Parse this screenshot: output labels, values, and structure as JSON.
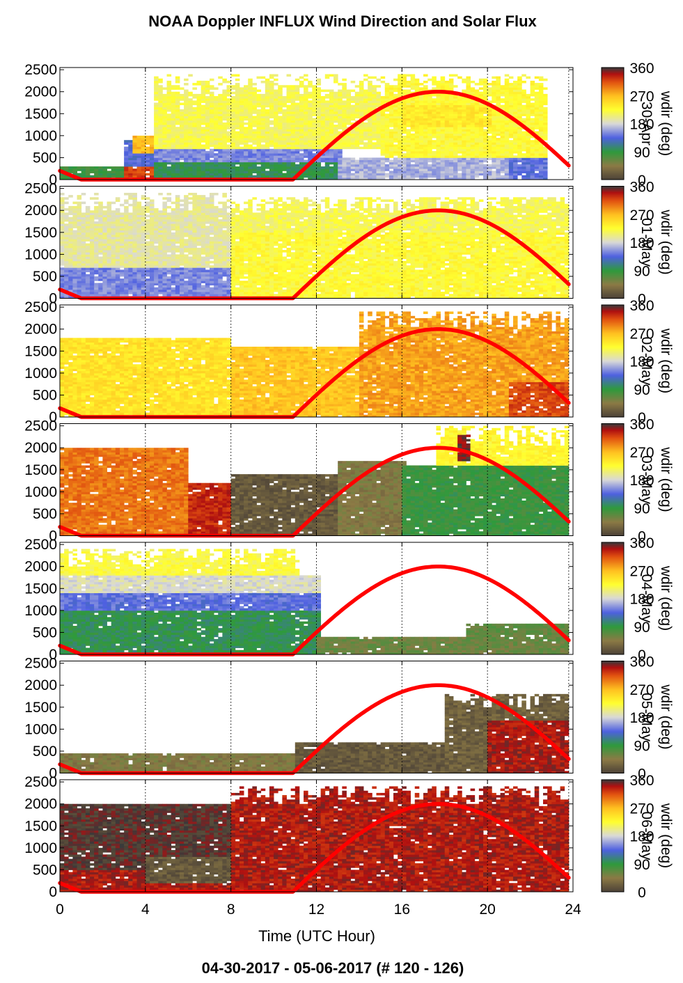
{
  "title": "NOAA Doppler INFLUX Wind Direction and Solar Flux",
  "footer": "04-30-2017 - 05-06-2017   (# 120 - 126)",
  "chart_data": {
    "type": "heatmap",
    "xlabel": "Time (UTC Hour)",
    "xlim": [
      0,
      24
    ],
    "x_ticks": [
      "0",
      "4",
      "8",
      "12",
      "16",
      "20",
      "24"
    ],
    "ylim": [
      0,
      2550
    ],
    "y_ticks": [
      "0",
      "500",
      "1000",
      "1500",
      "2000",
      "2500"
    ],
    "colorbar_label": "wdir (deg)",
    "colorbar_ticks": [
      "0",
      "90",
      "180",
      "270",
      "360"
    ],
    "colorbar_range": [
      0,
      360
    ],
    "colorbar_stops": [
      {
        "v": 0,
        "c": "#4a4037"
      },
      {
        "v": 45,
        "c": "#8c7a45"
      },
      {
        "v": 90,
        "c": "#2e9a3c"
      },
      {
        "v": 135,
        "c": "#4e60e0"
      },
      {
        "v": 180,
        "c": "#d8d8d8"
      },
      {
        "v": 225,
        "c": "#ffff30"
      },
      {
        "v": 270,
        "c": "#ffc020"
      },
      {
        "v": 315,
        "c": "#e05010"
      },
      {
        "v": 340,
        "c": "#b01010"
      },
      {
        "v": 360,
        "c": "#3a3a3a"
      }
    ],
    "solar_flux_color": "#ff0000",
    "solar_flux": {
      "rise_hour": 10.9,
      "peak_hour": 17.7,
      "peak_value": 2000,
      "start_hour": 0,
      "start_value": 200,
      "end_hour": 23.8,
      "end_value": 350
    },
    "panels": [
      {
        "day_label": "30-Apr",
        "coverage_end": 22.8,
        "top_height": 2350,
        "fields": [
          {
            "t0": 0,
            "t1": 3,
            "h0": 0,
            "h1": 300,
            "dir": 85
          },
          {
            "t0": 3,
            "t1": 4.3,
            "h0": 0,
            "h1": 300,
            "dir": 320
          },
          {
            "t0": 3,
            "t1": 4.3,
            "h0": 300,
            "h1": 900,
            "dir": 135
          },
          {
            "t0": 3.4,
            "t1": 4.3,
            "h0": 600,
            "h1": 1000,
            "dir": 270
          },
          {
            "t0": 4.3,
            "t1": 13,
            "h0": 0,
            "h1": 400,
            "dir": 95
          },
          {
            "t0": 4.3,
            "t1": 13,
            "h0": 400,
            "h1": 700,
            "dir": 150
          },
          {
            "t0": 4.3,
            "t1": 15,
            "h0": 700,
            "h1": 2400,
            "dir": 215
          },
          {
            "t0": 13,
            "t1": 22.8,
            "h0": 0,
            "h1": 500,
            "dir": 165
          },
          {
            "t0": 15,
            "t1": 22.8,
            "h0": 500,
            "h1": 2400,
            "dir": 225
          },
          {
            "t0": 16,
            "t1": 20,
            "h0": 1200,
            "h1": 1700,
            "dir": 240
          },
          {
            "t0": 21,
            "t1": 22.8,
            "h0": 0,
            "h1": 500,
            "dir": 140
          }
        ]
      },
      {
        "day_label": "01-May",
        "coverage_end": 23.8,
        "top_height": 2400,
        "fields": [
          {
            "t0": 0,
            "t1": 8,
            "h0": 0,
            "h1": 700,
            "dir": 150
          },
          {
            "t0": 0,
            "t1": 8,
            "h0": 700,
            "h1": 2400,
            "dir": 195
          },
          {
            "t0": 8,
            "t1": 23.8,
            "h0": 0,
            "h1": 1500,
            "dir": 225
          },
          {
            "t0": 8,
            "t1": 23.8,
            "h0": 1500,
            "h1": 2300,
            "dir": 215
          }
        ]
      },
      {
        "day_label": "02-May",
        "coverage_end": 23.8,
        "top_height": 2400,
        "fields": [
          {
            "t0": 0,
            "t1": 8,
            "h0": 0,
            "h1": 1800,
            "dir": 245
          },
          {
            "t0": 8,
            "t1": 14,
            "h0": 0,
            "h1": 1600,
            "dir": 265
          },
          {
            "t0": 14,
            "t1": 23.8,
            "h0": 0,
            "h1": 2400,
            "dir": 282
          },
          {
            "t0": 21,
            "t1": 23.8,
            "h0": 0,
            "h1": 800,
            "dir": 318
          }
        ]
      },
      {
        "day_label": "03-May",
        "coverage_end": 23.8,
        "top_height": 2500,
        "fields": [
          {
            "t0": 0,
            "t1": 6,
            "h0": 0,
            "h1": 2000,
            "dir": 300
          },
          {
            "t0": 6,
            "t1": 8,
            "h0": 0,
            "h1": 1200,
            "dir": 330
          },
          {
            "t0": 8,
            "t1": 13,
            "h0": 0,
            "h1": 1400,
            "dir": 20
          },
          {
            "t0": 13,
            "t1": 16,
            "h0": 0,
            "h1": 1700,
            "dir": 45
          },
          {
            "t0": 16,
            "t1": 23.8,
            "h0": 0,
            "h1": 1600,
            "dir": 85
          },
          {
            "t0": 17.5,
            "t1": 23.8,
            "h0": 1600,
            "h1": 2500,
            "dir": 230
          },
          {
            "t0": 18.5,
            "t1": 19,
            "h0": 1700,
            "h1": 2300,
            "dir": 350
          }
        ]
      },
      {
        "day_label": "04-May",
        "coverage_end": 23.8,
        "top_height": 2450,
        "fields": [
          {
            "t0": 0,
            "t1": 12,
            "h0": 0,
            "h1": 1000,
            "dir": 95
          },
          {
            "t0": 0,
            "t1": 12,
            "h0": 1000,
            "h1": 1400,
            "dir": 140
          },
          {
            "t0": 0,
            "t1": 12,
            "h0": 1400,
            "h1": 1800,
            "dir": 185
          },
          {
            "t0": 0,
            "t1": 11,
            "h0": 1800,
            "h1": 2400,
            "dir": 220
          },
          {
            "t0": 12,
            "t1": 23.8,
            "h0": 0,
            "h1": 400,
            "dir": 60
          },
          {
            "t0": 19,
            "t1": 23.8,
            "h0": 300,
            "h1": 700,
            "dir": 65
          }
        ]
      },
      {
        "day_label": "05-May",
        "coverage_end": 23.8,
        "top_height": 1900,
        "fields": [
          {
            "t0": 0,
            "t1": 11,
            "h0": 0,
            "h1": 450,
            "dir": 45
          },
          {
            "t0": 11,
            "t1": 18,
            "h0": 0,
            "h1": 700,
            "dir": 20
          },
          {
            "t0": 18,
            "t1": 23.8,
            "h0": 0,
            "h1": 1800,
            "dir": 25
          },
          {
            "t0": 20,
            "t1": 23.8,
            "h0": 0,
            "h1": 1200,
            "dir": 340
          }
        ]
      },
      {
        "day_label": "06-May",
        "coverage_end": 23.8,
        "top_height": 2450,
        "fields": [
          {
            "t0": 0,
            "t1": 8,
            "h0": 0,
            "h1": 500,
            "dir": 338
          },
          {
            "t0": 0,
            "t1": 8,
            "h0": 500,
            "h1": 2000,
            "dir": 358
          },
          {
            "t0": 8,
            "t1": 23.8,
            "h0": 0,
            "h1": 2400,
            "dir": 338
          },
          {
            "t0": 4,
            "t1": 8,
            "h0": 200,
            "h1": 800,
            "dir": 20
          }
        ]
      }
    ]
  }
}
